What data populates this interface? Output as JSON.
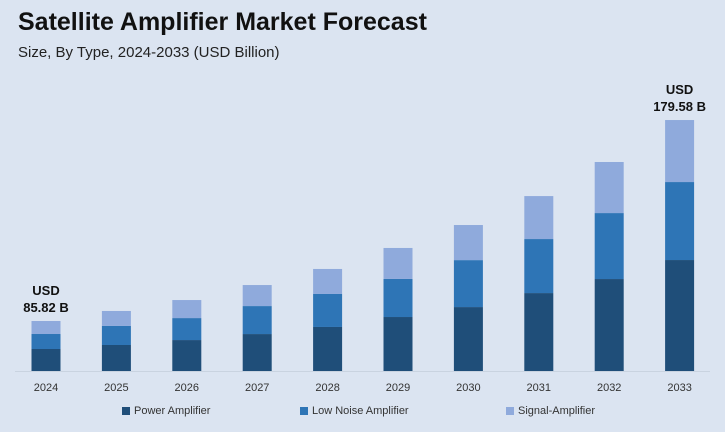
{
  "chart_data": {
    "type": "bar",
    "stacked": true,
    "title": "Satellite Amplifier Market Forecast",
    "subtitle": "Size, By Type, 2024-2033 (USD Billion)",
    "xlabel": "",
    "ylabel": "",
    "categories": [
      "2024",
      "2025",
      "2026",
      "2027",
      "2028",
      "2029",
      "2030",
      "2031",
      "2032",
      "2033"
    ],
    "series": [
      {
        "name": "Power Amplifier",
        "color": "#1f4e79",
        "values": [
          37.76,
          39.2,
          41.7,
          44.1,
          47.5,
          52.6,
          57.2,
          64.2,
          70.4,
          79.4
        ]
      },
      {
        "name": "Low Noise Amplifier",
        "color": "#2e75b6",
        "values": [
          25.75,
          28.7,
          29.6,
          33.4,
          35.6,
          37.1,
          42.0,
          44.5,
          50.5,
          55.8
        ]
      },
      {
        "name": "Signal-Amplifier",
        "color": "#8faadc",
        "values": [
          22.31,
          22.6,
          24.3,
          25.1,
          27.0,
          30.2,
          31.4,
          35.4,
          39.1,
          44.38
        ]
      }
    ],
    "annotations": [
      {
        "category": "2024",
        "line1": "USD",
        "line2": "85.82 B"
      },
      {
        "category": "2033",
        "line1": "USD",
        "line2": "179.58 B"
      }
    ],
    "grid": false,
    "legend": "bottom"
  }
}
